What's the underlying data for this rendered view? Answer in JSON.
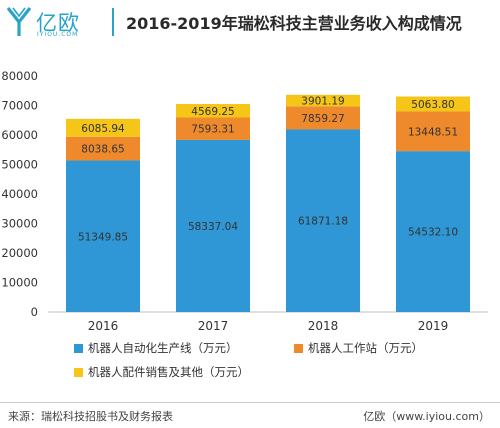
{
  "header": {
    "logo_text": "亿欧",
    "logo_sub": "IYIOU.COM",
    "title": "2016-2019年瑞松科技主营业务收入构成情况"
  },
  "footer": {
    "source": "来源：瑞松科技招股书及财务报表",
    "brand": "亿欧（www.iyiou.com）"
  },
  "colors": {
    "brand": "#2aa3c9",
    "series_blue": "#2f97d6",
    "series_orange": "#ee8a2b",
    "series_yellow": "#f5c518"
  },
  "chart_data": {
    "type": "bar",
    "stacked": true,
    "title": "2016-2019年瑞松科技主营业务收入构成情况",
    "categories": [
      "2016",
      "2017",
      "2018",
      "2019"
    ],
    "ylim": [
      0,
      80000
    ],
    "yticks": [
      "0",
      "10000",
      "20000",
      "30000",
      "40000",
      "50000",
      "60000",
      "70000",
      "80000"
    ],
    "legend_position": "bottom",
    "grid": false,
    "series": [
      {
        "name": "机器人自动化生产线（万元）",
        "color": "#2f97d6",
        "values": [
          51349.85,
          58337.04,
          61871.18,
          54532.1
        ],
        "labels": [
          "51349.85",
          "58337.04",
          "61871.18",
          "54532.10"
        ]
      },
      {
        "name": "机器人工作站（万元）",
        "color": "#ee8a2b",
        "values": [
          8038.65,
          7593.31,
          7859.27,
          13448.51
        ],
        "labels": [
          "8038.65",
          "7593.31",
          "7859.27",
          "13448.51"
        ]
      },
      {
        "name": "机器人配件销售及其他（万元）",
        "color": "#f5c518",
        "values": [
          6085.94,
          4569.25,
          3901.19,
          5063.8
        ],
        "labels": [
          "6085.94",
          "4569.25",
          "3901.19",
          "5063.80"
        ]
      }
    ]
  }
}
